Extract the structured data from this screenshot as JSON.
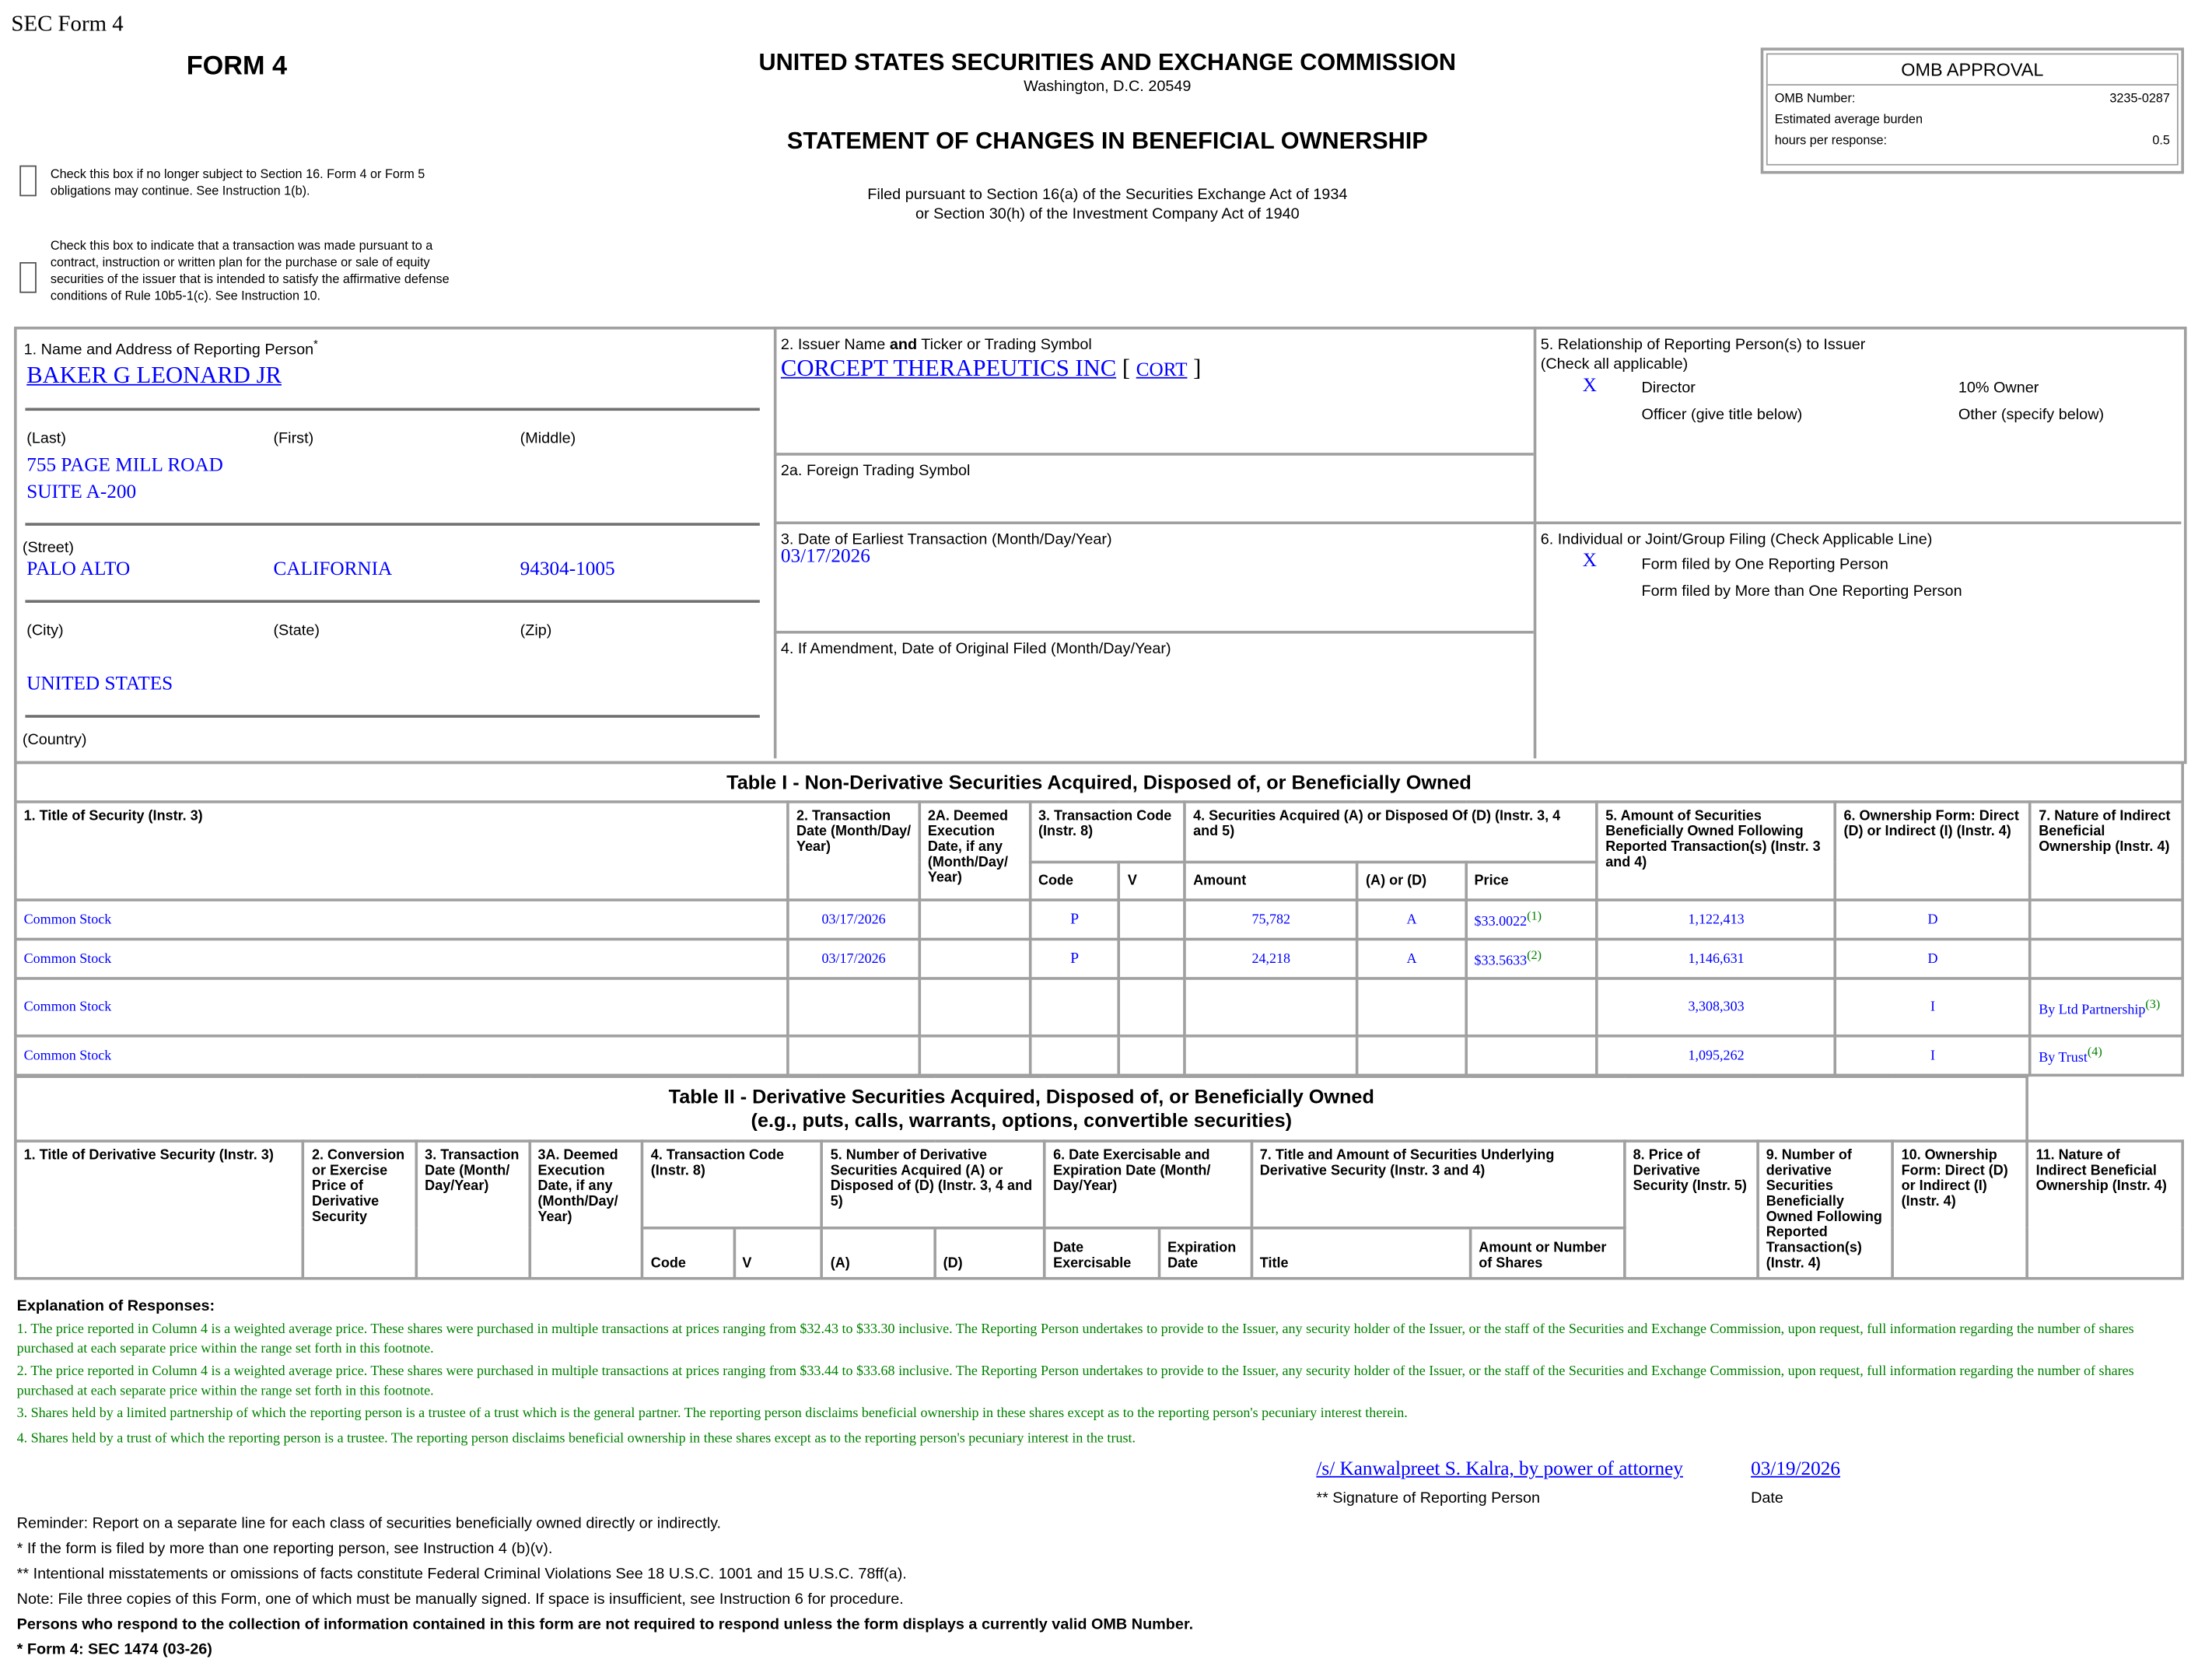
{
  "header": {
    "sec_form": "SEC Form 4",
    "form_title": "FORM 4",
    "agency": "UNITED STATES SECURITIES AND EXCHANGE COMMISSION",
    "location": "Washington, D.C. 20549",
    "statement": "STATEMENT OF CHANGES IN BENEFICIAL OWNERSHIP",
    "filed1": "Filed pursuant to Section 16(a) of the Securities Exchange Act of 1934",
    "filed2": "or Section 30(h) of the Investment Company Act of 1940",
    "check1": "Check this box if no longer subject to Section 16. Form 4 or Form 5 obligations may continue. See Instruction 1(b).",
    "check2": "Check this box to indicate that a transaction was made pursuant to a contract, instruction or written plan for the purchase or sale of equity securities of the issuer that is intended to satisfy the affirmative defense conditions of Rule 10b5-1(c). See Instruction 10."
  },
  "omb": {
    "title": "OMB APPROVAL",
    "number_label": "OMB Number:",
    "number": "3235-0287",
    "burden_label": "Estimated average burden",
    "hours_label": "hours per response:",
    "hours": "0.5"
  },
  "person": {
    "label": "1. Name and Address of Reporting Person",
    "asterisk": "*",
    "name": "BAKER G LEONARD JR",
    "last": "(Last)",
    "first": "(First)",
    "middle": "(Middle)",
    "street1": "755 PAGE MILL ROAD",
    "street2": "SUITE A-200",
    "street_label": "(Street)",
    "city": "PALO ALTO",
    "state": "CALIFORNIA",
    "zip": "94304-1005",
    "city_label": "(City)",
    "state_label": "(State)",
    "zip_label": "(Zip)",
    "country": "UNITED STATES",
    "country_label": "(Country)"
  },
  "issuer": {
    "label_a": "2. Issuer Name ",
    "label_b": "and",
    "label_c": " Ticker or Trading Symbol",
    "name": "CORCEPT THERAPEUTICS INC",
    "ticker": "CORT",
    "foreign_label": "2a. Foreign Trading Symbol",
    "date_label": "3. Date of Earliest Transaction (Month/Day/Year)",
    "date": "03/17/2026",
    "amend_label": "4. If Amendment, Date of Original Filed (Month/Day/Year)"
  },
  "relationship": {
    "label": "5. Relationship of Reporting Person(s) to Issuer",
    "sub": "(Check all applicable)",
    "mark": "X",
    "director": "Director",
    "owner10": "10% Owner",
    "officer": "Officer (give title below)",
    "other": "Other (specify below)"
  },
  "filing": {
    "label": "6. Individual or Joint/Group Filing (Check Applicable Line)",
    "mark": "X",
    "one": "Form filed by One Reporting Person",
    "more": "Form filed by More than One Reporting Person"
  },
  "table1": {
    "title": "Table I - Non-Derivative Securities Acquired, Disposed of, or Beneficially Owned",
    "headers": {
      "c1": "1. Title of Security (Instr. 3)",
      "c2": "2. Transaction Date (Month/Day/ Year)",
      "c2a": "2A. Deemed Execution Date, if any (Month/Day/ Year)",
      "c3": "3. Transaction Code (Instr. 8)",
      "c4": "4. Securities Acquired (A) or Disposed Of (D) (Instr. 3, 4 and 5)",
      "c5": "5. Amount of Securities Beneficially Owned Following Reported Transaction(s) (Instr. 3 and 4)",
      "c6": "6. Ownership Form: Direct (D) or Indirect (I) (Instr. 4)",
      "c7": "7. Nature of Indirect Beneficial Ownership (Instr. 4)",
      "code": "Code",
      "v": "V",
      "amount": "Amount",
      "aord": "(A) or (D)",
      "price": "Price"
    },
    "rows": [
      {
        "title": "Common Stock",
        "date": "03/17/2026",
        "deemed": "",
        "code": "P",
        "v": "",
        "amount": "75,782",
        "aord": "A",
        "price": "$33.0022",
        "price_fn": "(1)",
        "owned": "1,122,413",
        "form": "D",
        "nature": "",
        "nature_fn": ""
      },
      {
        "title": "Common Stock",
        "date": "03/17/2026",
        "deemed": "",
        "code": "P",
        "v": "",
        "amount": "24,218",
        "aord": "A",
        "price": "$33.5633",
        "price_fn": "(2)",
        "owned": "1,146,631",
        "form": "D",
        "nature": "",
        "nature_fn": ""
      },
      {
        "title": "Common Stock",
        "date": "",
        "deemed": "",
        "code": "",
        "v": "",
        "amount": "",
        "aord": "",
        "price": "",
        "price_fn": "",
        "owned": "3,308,303",
        "form": "I",
        "nature": "By Ltd Partnership",
        "nature_fn": "(3)"
      },
      {
        "title": "Common Stock",
        "date": "",
        "deemed": "",
        "code": "",
        "v": "",
        "amount": "",
        "aord": "",
        "price": "",
        "price_fn": "",
        "owned": "1,095,262",
        "form": "I",
        "nature": "By Trust",
        "nature_fn": "(4)"
      }
    ]
  },
  "table2": {
    "title": "Table II - Derivative Securities Acquired, Disposed of, or Beneficially Owned",
    "subtitle": "(e.g., puts, calls, warrants, options, convertible securities)",
    "headers": {
      "c1": "1. Title of Derivative Security (Instr. 3)",
      "c2": "2. Conversion or Exercise Price of Derivative Security",
      "c3": "3. Transaction Date (Month/ Day/Year)",
      "c3a": "3A. Deemed Execution Date, if any (Month/Day/ Year)",
      "c4": "4. Transaction Code (Instr. 8)",
      "c5": "5. Number of Derivative Securities Acquired (A) or Disposed of (D) (Instr. 3, 4 and 5)",
      "c6": "6. Date Exercisable and Expiration Date (Month/ Day/Year)",
      "c7": "7. Title and Amount of Securities Underlying Derivative Security (Instr. 3 and 4)",
      "c8": "8. Price of Derivative Security (Instr. 5)",
      "c9": "9. Number of derivative Securities Beneficially Owned Following Reported Transaction(s) (Instr. 4)",
      "c10": "10. Ownership Form: Direct (D) or Indirect (I) (Instr. 4)",
      "c11": "11. Nature of Indirect Beneficial Ownership (Instr. 4)",
      "code": "Code",
      "v": "V",
      "a": "(A)",
      "d": "(D)",
      "exercisable": "Date Exercisable",
      "expiration": "Expiration Date",
      "title": "Title",
      "amount": "Amount or Number of Shares"
    }
  },
  "explanation": {
    "title": "Explanation of Responses:",
    "notes": [
      "1. The price reported in Column 4 is a weighted average price. These shares were purchased in multiple transactions at prices ranging from $32.43 to $33.30 inclusive. The Reporting Person undertakes to provide to the Issuer, any security holder of the Issuer, or the staff of the Securities and Exchange Commission, upon request, full information regarding the number of shares purchased at each separate price within the range set forth in this footnote.",
      "2. The price reported in Column 4 is a weighted average price. These shares were purchased in multiple transactions at prices ranging from $33.44 to $33.68 inclusive. The Reporting Person undertakes to provide to the Issuer, any security holder of the Issuer, or the staff of the Securities and Exchange Commission, upon request, full information regarding the number of shares purchased at each separate price within the range set forth in this footnote.",
      "3. Shares held by a limited partnership of which the reporting person is a trustee of a trust which is the general partner. The reporting person disclaims beneficial ownership in these shares except as to the reporting person's pecuniary interest therein.",
      "4. Shares held by a trust of which the reporting person is a trustee. The reporting person disclaims beneficial ownership in these shares except as to the reporting person's pecuniary interest in the trust."
    ]
  },
  "signature": {
    "sig": "/s/ Kanwalpreet S. Kalra, by power of attorney",
    "date": "03/19/2026",
    "sig_label": "** Signature of Reporting Person",
    "date_label": "Date"
  },
  "footer": {
    "reminder": "Reminder: Report on a separate line for each class of securities beneficially owned directly or indirectly.",
    "f1": "* If the form is filed by more than one reporting person, see Instruction 4 (b)(v).",
    "f2": "** Intentional misstatements or omissions of facts constitute Federal Criminal Violations See 18 U.S.C. 1001 and 15 U.S.C. 78ff(a).",
    "f3": "Note: File three copies of this Form, one of which must be manually signed. If space is insufficient, see Instruction 6 for procedure.",
    "f4": "Persons who respond to the collection of information contained in this form are not required to respond unless the form displays a currently valid OMB Number.",
    "f5": "* Form 4: SEC 1474 (03-26)"
  }
}
